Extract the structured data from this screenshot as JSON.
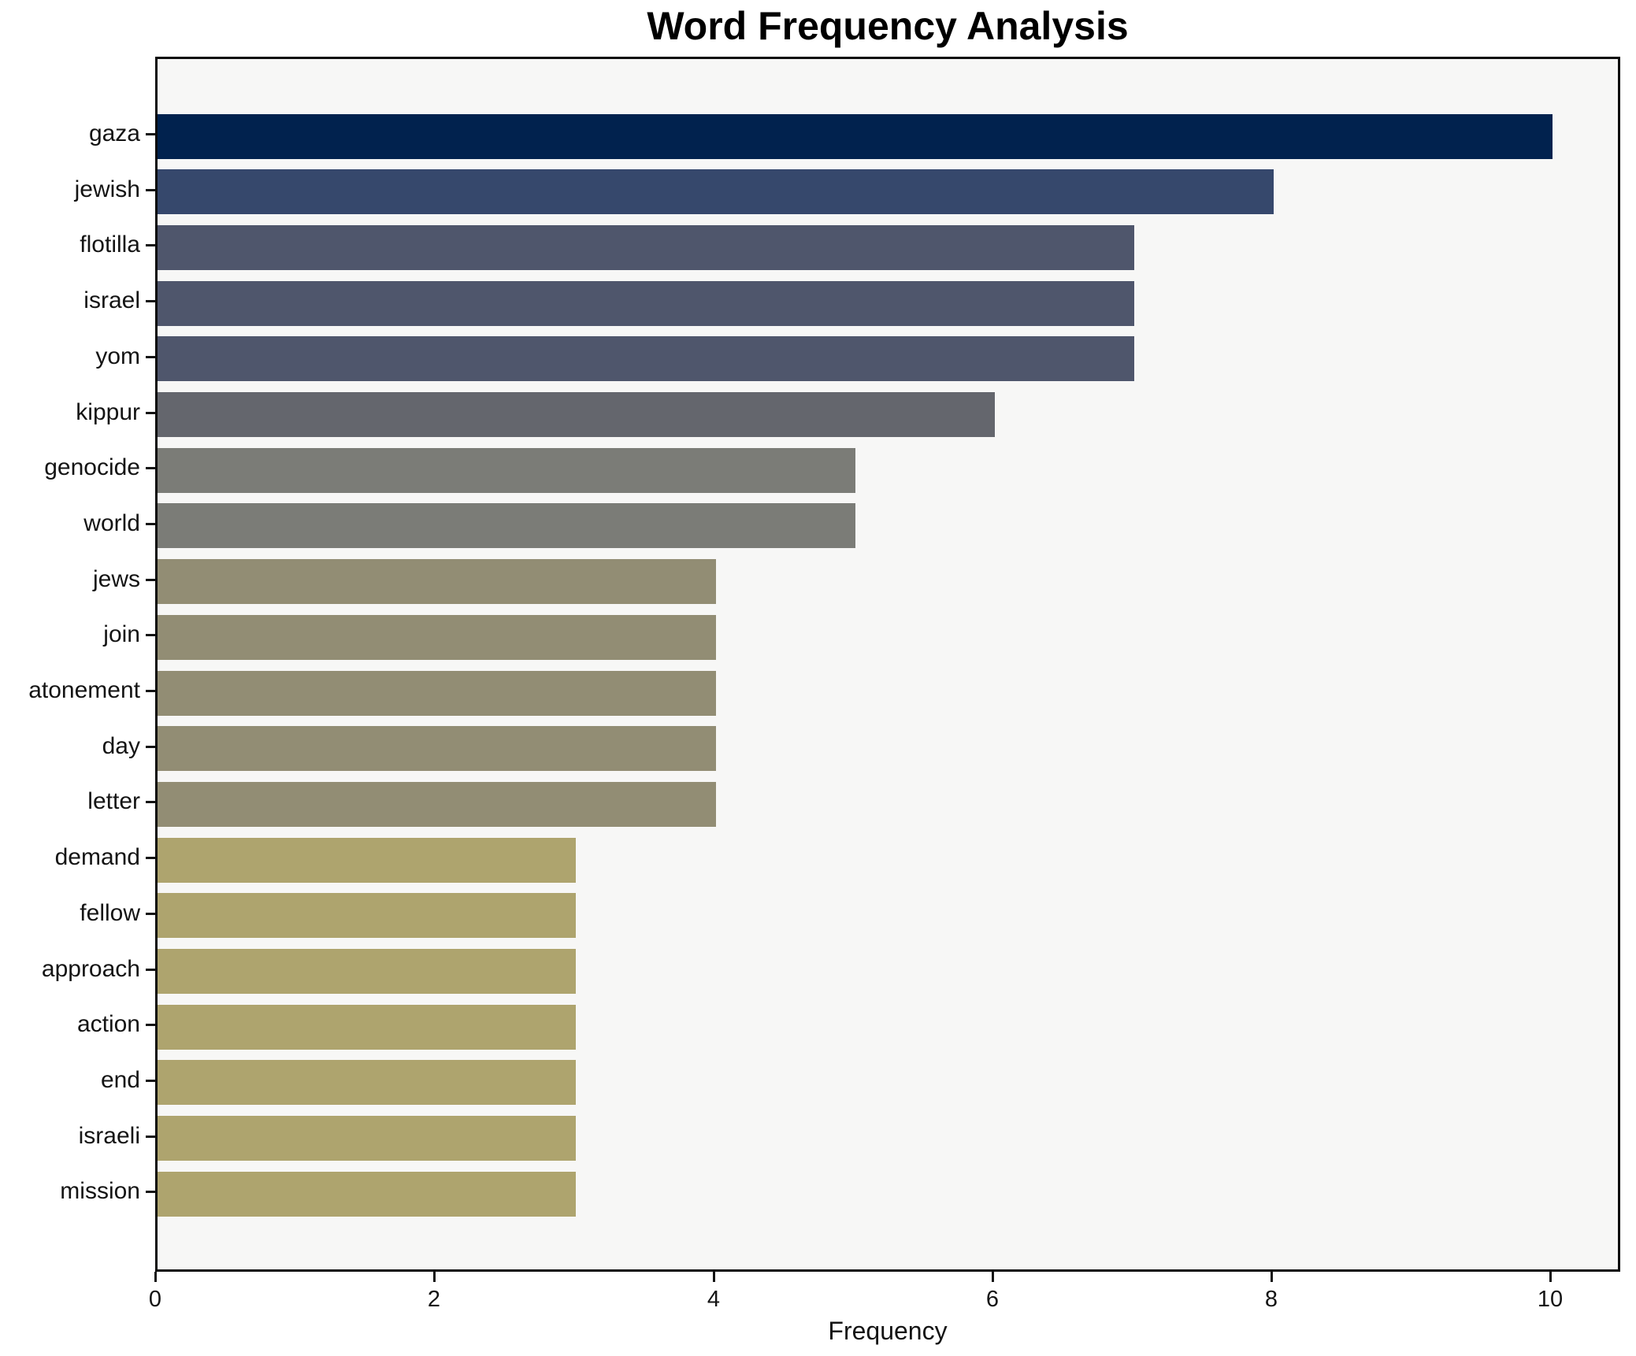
{
  "chart_data": {
    "type": "bar",
    "orientation": "horizontal",
    "title": "Word Frequency Analysis",
    "xlabel": "Frequency",
    "ylabel": "",
    "categories": [
      "gaza",
      "jewish",
      "flotilla",
      "israel",
      "yom",
      "kippur",
      "genocide",
      "world",
      "jews",
      "join",
      "atonement",
      "day",
      "letter",
      "demand",
      "fellow",
      "approach",
      "action",
      "end",
      "israeli",
      "mission"
    ],
    "values": [
      10,
      8,
      7,
      7,
      7,
      6,
      5,
      5,
      4,
      4,
      4,
      4,
      4,
      3,
      3,
      3,
      3,
      3,
      3,
      3
    ],
    "bar_colors": [
      "#01224e",
      "#36486c",
      "#4f566c",
      "#4f566c",
      "#4f566c",
      "#64666d",
      "#7b7c77",
      "#7b7c77",
      "#928d74",
      "#928d74",
      "#928d74",
      "#928d74",
      "#928d74",
      "#aea46e",
      "#aea46e",
      "#aea46e",
      "#aea46e",
      "#aea46e",
      "#aea46e",
      "#aea46e"
    ],
    "x_ticks": [
      0,
      2,
      4,
      6,
      8,
      10
    ],
    "xlim": [
      0,
      10.5
    ],
    "grid": false,
    "legend": false,
    "plot_background": "#f7f7f6",
    "figure_background": "#ffffff",
    "spine_color": "#0c0c0c"
  }
}
